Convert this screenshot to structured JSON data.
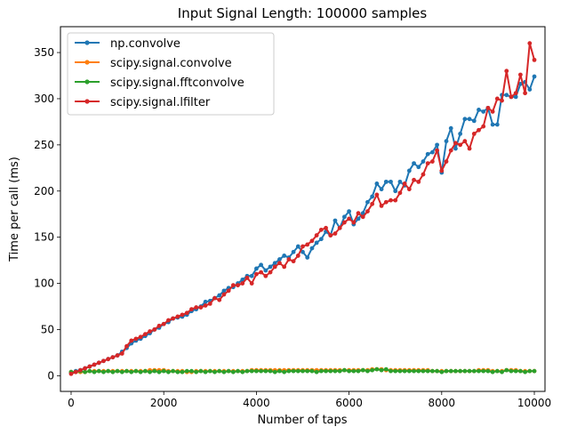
{
  "chart_data": {
    "type": "line",
    "title": "Input Signal Length: 100000 samples",
    "xlabel": "Number of taps",
    "ylabel": "Time per call (ms)",
    "xlim": [
      -230,
      10230
    ],
    "ylim": [
      -17,
      378
    ],
    "xticks": [
      0,
      2000,
      4000,
      6000,
      8000,
      10000
    ],
    "yticks": [
      0,
      50,
      100,
      150,
      200,
      250,
      300,
      350
    ],
    "legend_position": "top-left",
    "x": [
      0,
      100,
      200,
      300,
      400,
      500,
      600,
      700,
      800,
      900,
      1000,
      1100,
      1200,
      1300,
      1400,
      1500,
      1600,
      1700,
      1800,
      1900,
      2000,
      2100,
      2200,
      2300,
      2400,
      2500,
      2600,
      2700,
      2800,
      2900,
      3000,
      3100,
      3200,
      3300,
      3400,
      3500,
      3600,
      3700,
      3800,
      3900,
      4000,
      4100,
      4200,
      4300,
      4400,
      4500,
      4600,
      4700,
      4800,
      4900,
      5000,
      5100,
      5200,
      5300,
      5400,
      5500,
      5600,
      5700,
      5800,
      5900,
      6000,
      6100,
      6200,
      6300,
      6400,
      6500,
      6600,
      6700,
      6800,
      6900,
      7000,
      7100,
      7200,
      7300,
      7400,
      7500,
      7600,
      7700,
      7800,
      7900,
      8000,
      8100,
      8200,
      8300,
      8400,
      8500,
      8600,
      8700,
      8800,
      8900,
      9000,
      9100,
      9200,
      9300,
      9400,
      9500,
      9600,
      9700,
      9800,
      9900,
      10000
    ],
    "series": [
      {
        "name": "np.convolve",
        "color": "#1f77b4",
        "values": [
          3,
          5,
          6,
          8,
          10,
          12,
          14,
          16,
          18,
          20,
          22,
          26,
          30,
          35,
          38,
          40,
          43,
          46,
          50,
          52,
          56,
          58,
          62,
          63,
          64,
          66,
          70,
          72,
          75,
          80,
          81,
          84,
          87,
          92,
          95,
          96,
          100,
          104,
          108,
          108,
          116,
          120,
          114,
          118,
          122,
          126,
          130,
          128,
          134,
          140,
          134,
          128,
          138,
          144,
          148,
          156,
          152,
          168,
          160,
          172,
          178,
          164,
          170,
          176,
          188,
          194,
          208,
          202,
          210,
          210,
          200,
          210,
          206,
          222,
          230,
          226,
          232,
          240,
          242,
          250,
          220,
          254,
          268,
          246,
          262,
          278,
          278,
          276,
          288,
          286,
          290,
          272,
          272,
          304,
          304,
          302,
          302,
          316,
          318,
          310,
          324
        ]
      },
      {
        "name": "scipy.signal.convolve",
        "color": "#ff7f0e",
        "values": [
          4,
          4,
          4,
          4,
          5,
          5,
          5,
          5,
          5,
          5,
          5,
          5,
          5,
          5,
          5,
          5,
          5,
          6,
          6,
          6,
          6,
          5,
          5,
          5,
          5,
          4,
          4,
          5,
          5,
          5,
          5,
          5,
          5,
          5,
          5,
          5,
          5,
          5,
          5,
          6,
          6,
          6,
          6,
          6,
          6,
          6,
          6,
          6,
          6,
          6,
          6,
          6,
          6,
          6,
          6,
          6,
          6,
          6,
          6,
          6,
          6,
          6,
          6,
          6,
          6,
          7,
          7,
          7,
          6,
          6,
          6,
          6,
          6,
          6,
          6,
          6,
          6,
          6,
          5,
          5,
          5,
          5,
          5,
          5,
          5,
          5,
          5,
          5,
          6,
          6,
          6,
          5,
          5,
          5,
          6,
          6,
          6,
          5,
          5,
          5,
          5
        ]
      },
      {
        "name": "scipy.signal.fftconvolve",
        "color": "#2ca02c",
        "values": [
          4,
          4,
          5,
          4,
          5,
          4,
          5,
          4,
          5,
          4,
          5,
          4,
          5,
          4,
          5,
          4,
          5,
          4,
          5,
          4,
          5,
          4,
          5,
          4,
          4,
          5,
          5,
          4,
          5,
          4,
          5,
          4,
          5,
          4,
          5,
          4,
          5,
          4,
          5,
          5,
          5,
          5,
          5,
          5,
          4,
          5,
          4,
          5,
          5,
          5,
          5,
          5,
          5,
          4,
          5,
          5,
          5,
          5,
          5,
          6,
          5,
          5,
          5,
          6,
          5,
          6,
          7,
          6,
          7,
          5,
          5,
          5,
          5,
          5,
          5,
          5,
          5,
          5,
          5,
          5,
          4,
          5,
          5,
          5,
          5,
          5,
          5,
          5,
          5,
          5,
          5,
          4,
          5,
          4,
          6,
          5,
          5,
          5,
          4,
          5,
          5
        ]
      },
      {
        "name": "scipy.signal.lfilter",
        "color": "#d62728",
        "values": [
          2,
          4,
          6,
          8,
          10,
          12,
          14,
          16,
          18,
          20,
          22,
          24,
          32,
          38,
          40,
          42,
          45,
          48,
          50,
          54,
          56,
          60,
          62,
          64,
          66,
          68,
          72,
          74,
          74,
          76,
          78,
          84,
          82,
          88,
          92,
          98,
          98,
          100,
          106,
          100,
          110,
          112,
          108,
          112,
          118,
          122,
          118,
          126,
          124,
          130,
          140,
          142,
          146,
          152,
          158,
          160,
          152,
          154,
          160,
          166,
          170,
          166,
          176,
          172,
          178,
          186,
          196,
          184,
          188,
          190,
          190,
          198,
          208,
          202,
          212,
          210,
          218,
          230,
          232,
          244,
          222,
          232,
          244,
          252,
          250,
          254,
          246,
          262,
          266,
          270,
          290,
          286,
          300,
          298,
          330,
          302,
          306,
          326,
          306,
          360,
          342
        ]
      }
    ]
  }
}
